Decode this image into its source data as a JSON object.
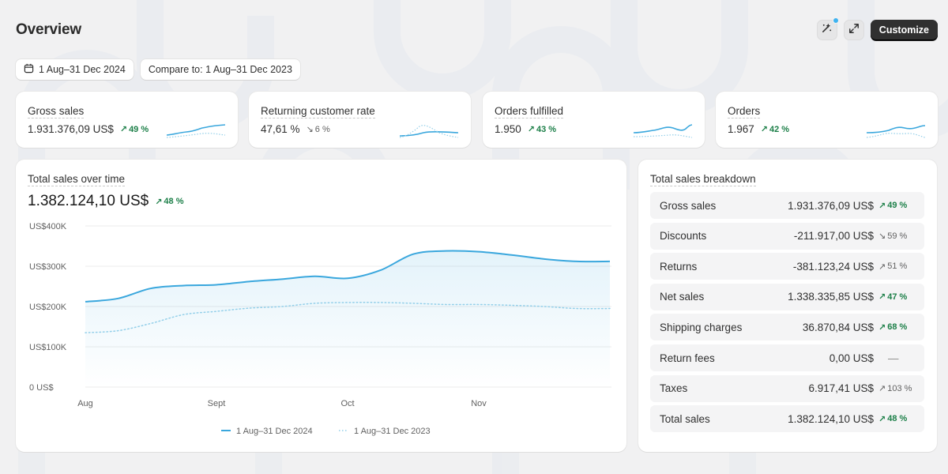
{
  "header": {
    "title": "Overview",
    "customize_label": "Customize"
  },
  "filters": {
    "date_range": "1 Aug–31 Dec 2024",
    "compare": "Compare to: 1 Aug–31 Dec 2023"
  },
  "metrics": [
    {
      "label": "Gross sales",
      "value": "1.931.376,09 US$",
      "delta": "49 %",
      "trend": "up"
    },
    {
      "label": "Returning customer rate",
      "value": "47,61 %",
      "delta": "6 %",
      "trend": "down"
    },
    {
      "label": "Orders fulfilled",
      "value": "1.950",
      "delta": "43 %",
      "trend": "up"
    },
    {
      "label": "Orders",
      "value": "1.967",
      "delta": "42 %",
      "trend": "up"
    }
  ],
  "sales_chart": {
    "title": "Total sales over time",
    "total": "1.382.124,10 US$",
    "delta": "48 %"
  },
  "chart_data": {
    "type": "line",
    "x": [
      "Aug",
      "Sept",
      "Oct",
      "Nov"
    ],
    "ylim": [
      0,
      400000
    ],
    "y_ticks": [
      "US$400K",
      "US$300K",
      "US$200K",
      "US$100K",
      "0 US$"
    ],
    "series": [
      {
        "name": "1 Aug–31 Dec 2024",
        "color": "#3aa7dd",
        "style": "solid",
        "points": [
          [
            0,
            212000
          ],
          [
            0.25,
            220000
          ],
          [
            0.5,
            245000
          ],
          [
            0.75,
            252000
          ],
          [
            1,
            254000
          ],
          [
            1.25,
            262000
          ],
          [
            1.5,
            268000
          ],
          [
            1.75,
            275000
          ],
          [
            2,
            270000
          ],
          [
            2.25,
            290000
          ],
          [
            2.5,
            330000
          ],
          [
            2.75,
            338000
          ],
          [
            3,
            336000
          ],
          [
            3.25,
            328000
          ],
          [
            3.5,
            318000
          ],
          [
            3.75,
            312000
          ],
          [
            4,
            312000
          ]
        ]
      },
      {
        "name": "1 Aug–31 Dec 2023",
        "color": "#93cfe9",
        "style": "dotted",
        "points": [
          [
            0,
            135000
          ],
          [
            0.25,
            140000
          ],
          [
            0.5,
            158000
          ],
          [
            0.75,
            180000
          ],
          [
            1,
            188000
          ],
          [
            1.25,
            196000
          ],
          [
            1.5,
            200000
          ],
          [
            1.75,
            208000
          ],
          [
            2,
            210000
          ],
          [
            2.25,
            210000
          ],
          [
            2.5,
            208000
          ],
          [
            2.75,
            205000
          ],
          [
            3,
            205000
          ],
          [
            3.25,
            203000
          ],
          [
            3.5,
            200000
          ],
          [
            3.75,
            195000
          ],
          [
            4,
            195000
          ]
        ]
      }
    ],
    "grid": true,
    "legend": "bottom-center"
  },
  "breakdown": {
    "title": "Total sales breakdown",
    "rows": [
      {
        "label": "Gross sales",
        "value": "1.931.376,09 US$",
        "delta": "49 %",
        "trend": "up-positive"
      },
      {
        "label": "Discounts",
        "value": "-211.917,00 US$",
        "delta": "59 %",
        "trend": "down-neutral"
      },
      {
        "label": "Returns",
        "value": "-381.123,24 US$",
        "delta": "51 %",
        "trend": "up-neutral"
      },
      {
        "label": "Net sales",
        "value": "1.338.335,85 US$",
        "delta": "47 %",
        "trend": "up-positive"
      },
      {
        "label": "Shipping charges",
        "value": "36.870,84 US$",
        "delta": "68 %",
        "trend": "up-positive"
      },
      {
        "label": "Return fees",
        "value": "0,00 US$",
        "delta": "—",
        "trend": "none"
      },
      {
        "label": "Taxes",
        "value": "6.917,41 US$",
        "delta": "103 %",
        "trend": "up-neutral"
      },
      {
        "label": "Total sales",
        "value": "1.382.124,10 US$",
        "delta": "48 %",
        "trend": "up-positive"
      }
    ]
  }
}
